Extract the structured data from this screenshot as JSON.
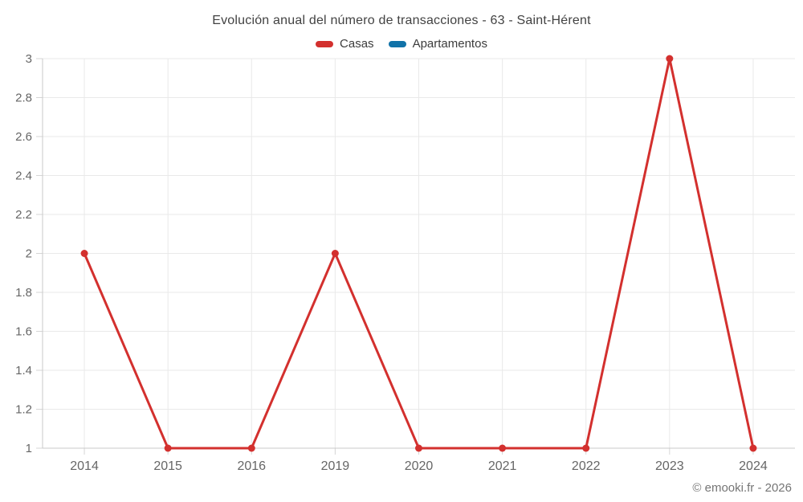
{
  "title": "Evolución anual del número de transacciones - 63 - Saint-Hérent",
  "legend": {
    "items": [
      {
        "label": "Casas",
        "color": "#d3302e"
      },
      {
        "label": "Apartamentos",
        "color": "#1172a8"
      }
    ]
  },
  "footer": {
    "copyright": "© emooki.fr - 2026"
  },
  "chart_data": {
    "type": "line",
    "title": "Evolución anual del número de transacciones - 63 - Saint-Hérent",
    "categories": [
      "2014",
      "2015",
      "2016",
      "2019",
      "2020",
      "2021",
      "2022",
      "2023",
      "2024"
    ],
    "series": [
      {
        "name": "Casas",
        "color": "#d3302e",
        "values": [
          2,
          1,
          1,
          2,
          1,
          1,
          1,
          3,
          1
        ]
      },
      {
        "name": "Apartamentos",
        "color": "#1172a8",
        "values": []
      }
    ],
    "ylim": [
      1,
      3
    ],
    "yticks": [
      1,
      1.2,
      1.4,
      1.6,
      1.8,
      2,
      2.2,
      2.4,
      2.6,
      2.8,
      3
    ],
    "xlabel": "",
    "ylabel": "",
    "grid": true,
    "legend_position": "top",
    "colors": {
      "grid": "#e9e9e9",
      "axis": "#c9c9c9",
      "tick": "#d6d6d6",
      "tick_label": "#666666",
      "title_text": "#424242",
      "footer_text": "#757575"
    }
  }
}
